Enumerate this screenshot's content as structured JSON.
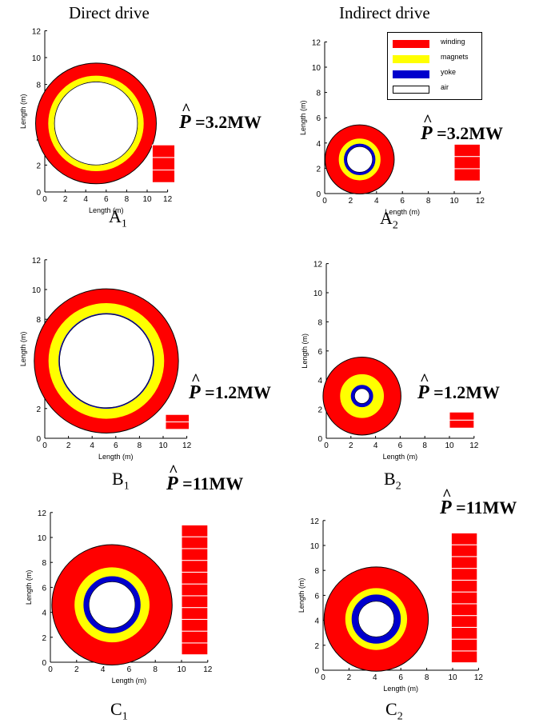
{
  "columns": {
    "left": "Direct drive",
    "right": "Indirect drive"
  },
  "legend": [
    {
      "label": "winding",
      "color": "#ff0000"
    },
    {
      "label": "magnets",
      "color": "#ffff00"
    },
    {
      "label": "yoke",
      "color": "#0000cc"
    },
    {
      "label": "air",
      "color": "#ffffff"
    }
  ],
  "axis": {
    "xlabel": "Length (m)",
    "ylabel": "Length (m)",
    "ticks": [
      0,
      2,
      4,
      6,
      8,
      10,
      12
    ]
  },
  "power_symbol": "P",
  "panels": [
    {
      "id": "A1",
      "caption_main": "A",
      "caption_sub": "1",
      "power_text": "=3.2MW",
      "circle": {
        "cx": 5,
        "cy": 5.1,
        "r_outer": 5.1,
        "r_magnet_outer": 4.0,
        "r_magnet_inner": 3.5,
        "r_yoke_inner": 3.5
      },
      "stack": {
        "x0": 10.5,
        "x1": 12.7,
        "y0": 0.7,
        "y1": 3.5,
        "rows": 3
      }
    },
    {
      "id": "A2",
      "caption_main": "A",
      "caption_sub": "2",
      "power_text": "=3.2MW",
      "circle": {
        "cx": 2.7,
        "cy": 2.7,
        "r_outer": 2.7,
        "r_magnet_outer": 1.6,
        "r_magnet_inner": 1.2,
        "r_yoke_inner": 1.0
      },
      "stack": {
        "x0": 10.0,
        "x1": 12.0,
        "y0": 1.0,
        "y1": 3.9,
        "rows": 3
      }
    },
    {
      "id": "B1",
      "caption_main": "B",
      "caption_sub": "1",
      "power_text": "=1.2MW",
      "circle": {
        "cx": 5.2,
        "cy": 5.2,
        "r_outer": 5.4,
        "r_magnet_outer": 4.3,
        "r_magnet_inner": 3.55,
        "r_yoke_inner": 3.5
      },
      "stack": {
        "x0": 10.2,
        "x1": 12.2,
        "y0": 0.6,
        "y1": 1.6,
        "rows": 2
      }
    },
    {
      "id": "B2",
      "caption_main": "B",
      "caption_sub": "2",
      "power_text": "=1.2MW",
      "circle": {
        "cx": 2.9,
        "cy": 2.9,
        "r_outer": 2.9,
        "r_magnet_outer": 1.6,
        "r_magnet_inner": 0.8,
        "r_yoke_inner": 0.55
      },
      "stack": {
        "x0": 10.0,
        "x1": 12.0,
        "y0": 0.7,
        "y1": 1.8,
        "rows": 2
      }
    },
    {
      "id": "C1",
      "caption_main": "C",
      "caption_sub": "1",
      "power_text": "=11MW",
      "circle": {
        "cx": 4.7,
        "cy": 4.6,
        "r_outer": 4.7,
        "r_magnet_outer": 2.9,
        "r_magnet_inner": 2.2,
        "r_yoke_inner": 1.8
      },
      "stack": {
        "x0": 10.0,
        "x1": 12.0,
        "y0": 0.6,
        "y1": 11.0,
        "rows": 11
      }
    },
    {
      "id": "C2",
      "caption_main": "C",
      "caption_sub": "2",
      "power_text": "=11MW",
      "circle": {
        "cx": 4.1,
        "cy": 4.1,
        "r_outer": 4.1,
        "r_magnet_outer": 2.4,
        "r_magnet_inner": 1.9,
        "r_yoke_inner": 1.4
      },
      "stack": {
        "x0": 9.9,
        "x1": 11.9,
        "y0": 0.6,
        "y1": 11.0,
        "rows": 11
      }
    }
  ]
}
